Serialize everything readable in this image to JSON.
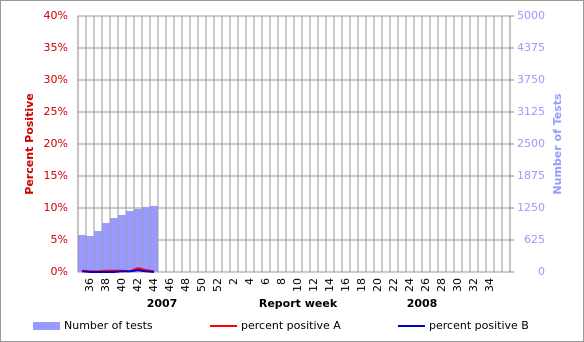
{
  "chart_data": {
    "type": "combo",
    "x_label": "Report week",
    "y_label": "Percent Positive",
    "y2_label": "Number of Tests",
    "year_labels": [
      "2007",
      "2008"
    ],
    "categories": [
      null,
      "36",
      null,
      "38",
      null,
      "40",
      null,
      "42",
      null,
      "44",
      null,
      "46",
      null,
      "48",
      null,
      "50",
      null,
      "52",
      null,
      "2",
      null,
      "4",
      null,
      "6",
      null,
      "8",
      null,
      "10",
      null,
      "12",
      null,
      "14",
      null,
      "16",
      null,
      "18",
      null,
      "20",
      null,
      "22",
      null,
      "24",
      null,
      "26",
      null,
      "28",
      null,
      "30",
      null,
      "32",
      null,
      "34",
      null,
      null
    ],
    "ylim": [
      0,
      40
    ],
    "yticks": [
      {
        "value": 0,
        "label": "0%"
      },
      {
        "value": 5,
        "label": "5%"
      },
      {
        "value": 10,
        "label": "10%"
      },
      {
        "value": 15,
        "label": "15%"
      },
      {
        "value": 20,
        "label": "20%"
      },
      {
        "value": 25,
        "label": "25%"
      },
      {
        "value": 30,
        "label": "30%"
      },
      {
        "value": 35,
        "label": "35%"
      },
      {
        "value": 40,
        "label": "40%"
      }
    ],
    "y2lim": [
      0,
      5000
    ],
    "y2ticks": [
      0,
      625,
      1250,
      1875,
      2500,
      3125,
      3750,
      4375,
      5000
    ],
    "grid": true,
    "series": [
      {
        "name": "Number of tests",
        "type": "bar",
        "axis": "y2",
        "color": "#9999ff",
        "values": [
          723,
          703,
          800,
          957,
          1055,
          1113,
          1191,
          1230,
          1270,
          1289,
          null,
          null,
          null,
          null,
          null,
          null,
          null,
          null,
          null,
          null,
          null,
          null,
          null,
          null,
          null,
          null,
          null,
          null,
          null,
          null,
          null,
          null,
          null,
          null,
          null,
          null,
          null,
          null,
          null,
          null,
          null,
          null,
          null,
          null,
          null,
          null,
          null,
          null,
          null,
          null,
          null,
          null,
          null,
          null
        ]
      },
      {
        "name": "percent positive A",
        "type": "line",
        "axis": "y",
        "color": "#ff0000",
        "values": [
          0.2,
          0.1,
          0.1,
          0.2,
          0.2,
          0.2,
          0.1,
          0.6,
          0.3,
          0.1,
          null,
          null,
          null,
          null,
          null,
          null,
          null,
          null,
          null,
          null,
          null,
          null,
          null,
          null,
          null,
          null,
          null,
          null,
          null,
          null,
          null,
          null,
          null,
          null,
          null,
          null,
          null,
          null,
          null,
          null,
          null,
          null,
          null,
          null,
          null,
          null,
          null,
          null,
          null,
          null,
          null,
          null,
          null,
          null
        ]
      },
      {
        "name": "percent positive B",
        "type": "line",
        "axis": "y",
        "color": "#0000cc",
        "values": [
          0.1,
          0.0,
          0.0,
          0.0,
          0.0,
          0.1,
          0.1,
          0.3,
          0.1,
          0.0,
          null,
          null,
          null,
          null,
          null,
          null,
          null,
          null,
          null,
          null,
          null,
          null,
          null,
          null,
          null,
          null,
          null,
          null,
          null,
          null,
          null,
          null,
          null,
          null,
          null,
          null,
          null,
          null,
          null,
          null,
          null,
          null,
          null,
          null,
          null,
          null,
          null,
          null,
          null,
          null,
          null,
          null,
          null,
          null
        ]
      }
    ]
  }
}
